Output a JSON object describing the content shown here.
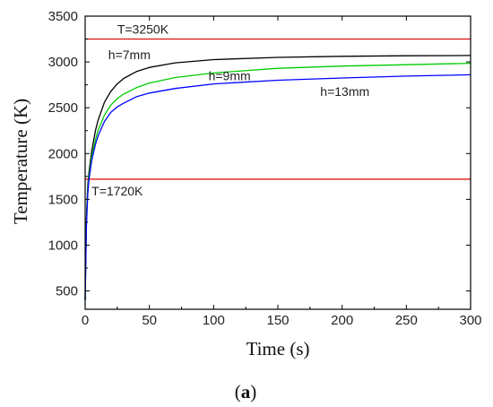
{
  "chart_data": {
    "type": "line",
    "xlabel": "Time (s)",
    "ylabel": "Temperature (K)",
    "xlim": [
      0,
      300
    ],
    "ylim": [
      300,
      3500
    ],
    "xticks": [
      0,
      50,
      100,
      150,
      200,
      250,
      300
    ],
    "yticks": [
      500,
      1000,
      1500,
      2000,
      2500,
      3000,
      3500
    ],
    "grid": false,
    "series": [
      {
        "name": "h=7mm",
        "color": "#000000",
        "x": [
          0,
          1,
          2,
          3,
          5,
          8,
          10,
          15,
          20,
          25,
          30,
          40,
          50,
          70,
          100,
          150,
          200,
          250,
          300
        ],
        "y": [
          400,
          1300,
          1650,
          1800,
          2020,
          2250,
          2360,
          2560,
          2680,
          2760,
          2820,
          2895,
          2940,
          2990,
          3025,
          3050,
          3062,
          3067,
          3070
        ]
      },
      {
        "name": "h=9mm",
        "color": "#00cc00",
        "x": [
          0,
          1,
          2,
          3,
          5,
          8,
          10,
          15,
          20,
          25,
          30,
          40,
          50,
          70,
          100,
          150,
          200,
          250,
          300
        ],
        "y": [
          400,
          1250,
          1600,
          1760,
          1960,
          2150,
          2250,
          2420,
          2530,
          2600,
          2650,
          2720,
          2770,
          2830,
          2880,
          2930,
          2955,
          2970,
          2985
        ]
      },
      {
        "name": "h=13mm",
        "color": "#0000ff",
        "x": [
          0,
          1,
          2,
          3,
          5,
          8,
          10,
          15,
          20,
          25,
          30,
          40,
          50,
          70,
          100,
          150,
          200,
          250,
          300
        ],
        "y": [
          400,
          1200,
          1560,
          1720,
          1920,
          2100,
          2190,
          2350,
          2450,
          2510,
          2550,
          2620,
          2660,
          2710,
          2760,
          2800,
          2825,
          2845,
          2860
        ]
      }
    ],
    "reference_lines": [
      {
        "label": "T=3250K",
        "value": 3250,
        "color": "#dd0000"
      },
      {
        "label": "T=1720K",
        "value": 1720,
        "color": "#dd0000"
      }
    ],
    "annotations": [
      {
        "text": "h=7mm",
        "x": 18,
        "y": 3030
      },
      {
        "text": "h=9mm",
        "x": 96,
        "y": 2800
      },
      {
        "text": "h=13mm",
        "x": 183,
        "y": 2630
      }
    ],
    "caption_open": "(",
    "caption_letter": "a",
    "caption_close": ")"
  }
}
